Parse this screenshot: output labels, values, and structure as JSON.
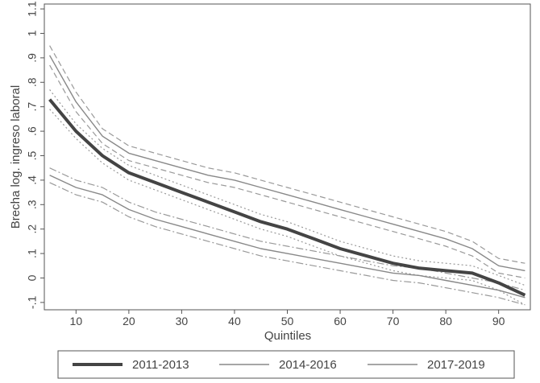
{
  "chart_data": {
    "type": "line",
    "title": "",
    "xlabel": "Quintiles",
    "ylabel": "Brecha log. ingreso laboral",
    "xlim": [
      4,
      96
    ],
    "ylim": [
      -0.13,
      1.12
    ],
    "x_ticks": [
      10,
      20,
      30,
      40,
      50,
      60,
      70,
      80,
      90
    ],
    "y_ticks": [
      -0.1,
      0,
      0.1,
      0.2,
      0.3,
      0.4,
      0.5,
      0.6,
      0.7,
      0.8,
      0.9,
      1,
      1.1
    ],
    "x_tick_labels": [
      "10",
      "20",
      "30",
      "40",
      "50",
      "60",
      "70",
      "80",
      "90"
    ],
    "y_tick_labels": [
      "-.1",
      "0",
      ".1",
      ".2",
      ".3",
      ".4",
      ".5",
      ".6",
      ".7",
      ".8",
      ".9",
      "1",
      "1.1"
    ],
    "grid": false,
    "legend_position": "bottom",
    "x": [
      5,
      10,
      15,
      20,
      25,
      30,
      35,
      40,
      45,
      50,
      55,
      60,
      65,
      70,
      75,
      80,
      85,
      90,
      95
    ],
    "series": [
      {
        "name": "2011-2013",
        "style": "thick-dark",
        "color": "#444444",
        "values": [
          0.73,
          0.6,
          0.5,
          0.43,
          0.39,
          0.35,
          0.31,
          0.27,
          0.23,
          0.2,
          0.16,
          0.12,
          0.09,
          0.06,
          0.04,
          0.03,
          0.02,
          -0.02,
          -0.07
        ],
        "ci_lower": [
          0.69,
          0.57,
          0.47,
          0.4,
          0.36,
          0.32,
          0.28,
          0.24,
          0.2,
          0.17,
          0.13,
          0.09,
          0.06,
          0.03,
          0.01,
          0.0,
          -0.01,
          -0.05,
          -0.11
        ],
        "ci_upper": [
          0.77,
          0.63,
          0.53,
          0.46,
          0.42,
          0.38,
          0.34,
          0.3,
          0.26,
          0.23,
          0.19,
          0.15,
          0.12,
          0.09,
          0.07,
          0.06,
          0.05,
          0.01,
          -0.03
        ],
        "ci_style": "dotted"
      },
      {
        "name": "2014-2016",
        "style": "thin-gray",
        "color": "#888888",
        "values": [
          0.91,
          0.72,
          0.58,
          0.51,
          0.48,
          0.45,
          0.42,
          0.4,
          0.37,
          0.34,
          0.31,
          0.28,
          0.25,
          0.22,
          0.19,
          0.16,
          0.12,
          0.05,
          0.03
        ],
        "ci_lower": [
          0.87,
          0.68,
          0.55,
          0.48,
          0.45,
          0.42,
          0.39,
          0.37,
          0.34,
          0.31,
          0.28,
          0.25,
          0.22,
          0.19,
          0.16,
          0.13,
          0.09,
          0.02,
          0.0
        ],
        "ci_upper": [
          0.95,
          0.76,
          0.61,
          0.54,
          0.51,
          0.48,
          0.45,
          0.43,
          0.4,
          0.37,
          0.34,
          0.31,
          0.28,
          0.25,
          0.22,
          0.19,
          0.15,
          0.08,
          0.06
        ],
        "ci_style": "dashed"
      },
      {
        "name": "2017-2019",
        "style": "thin-gray",
        "color": "#888888",
        "values": [
          0.42,
          0.37,
          0.34,
          0.28,
          0.24,
          0.21,
          0.18,
          0.15,
          0.12,
          0.1,
          0.08,
          0.06,
          0.04,
          0.02,
          0.01,
          -0.01,
          -0.03,
          -0.05,
          -0.08
        ],
        "ci_lower": [
          0.39,
          0.34,
          0.31,
          0.25,
          0.21,
          0.18,
          0.15,
          0.12,
          0.09,
          0.07,
          0.05,
          0.03,
          0.01,
          -0.01,
          -0.02,
          -0.04,
          -0.06,
          -0.08,
          -0.11
        ],
        "ci_upper": [
          0.45,
          0.4,
          0.37,
          0.31,
          0.27,
          0.24,
          0.21,
          0.18,
          0.15,
          0.13,
          0.11,
          0.09,
          0.07,
          0.05,
          0.04,
          0.02,
          0.0,
          -0.02,
          -0.05
        ],
        "ci_style": "dash-dot"
      }
    ]
  }
}
